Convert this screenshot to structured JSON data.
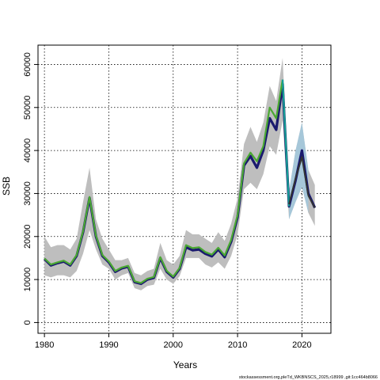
{
  "chart_data": {
    "type": "line",
    "xlabel": "Years",
    "ylabel": "SSB",
    "xlim": [
      1979,
      2024.5
    ],
    "ylim": [
      -2500,
      64500
    ],
    "x_ticks": [
      "1980",
      "1990",
      "2000",
      "2010",
      "2020"
    ],
    "y_ticks": [
      "0",
      "10000",
      "20000",
      "30000",
      "40000",
      "50000",
      "60000"
    ],
    "grid": true,
    "source_note": "stockassessment.org,pleTd_WKBNSCS_2025,r18999 ,git:1cc464b8066",
    "colors": {
      "ci_band": "#bebebe",
      "ci_band_recent": "#9ec9e2",
      "main_series": "#1a1a6e",
      "green_series": "#4aa832",
      "teal_series": "#16a096",
      "dark_series": "#333333"
    },
    "ci": {
      "x": [
        1980,
        1981,
        1982,
        1983,
        1984,
        1985,
        1986,
        1987,
        1988,
        1989,
        1990,
        1991,
        1992,
        1993,
        1994,
        1995,
        1996,
        1997,
        1998,
        1999,
        2000,
        2001,
        2002,
        2003,
        2004,
        2005,
        2006,
        2007,
        2008,
        2009,
        2010,
        2011,
        2012,
        2013,
        2014,
        2015,
        2016,
        2017,
        2018,
        2019,
        2020,
        2021,
        2022
      ],
      "lower": [
        11000,
        10500,
        11000,
        11000,
        10500,
        12000,
        16000,
        21500,
        17000,
        13500,
        12500,
        10000,
        11000,
        11500,
        8000,
        7500,
        8500,
        8800,
        12500,
        10000,
        9000,
        10800,
        15000,
        15000,
        15000,
        13500,
        12800,
        14000,
        12500,
        15500,
        20500,
        31000,
        32500,
        31000,
        34500,
        41000,
        39000,
        47000,
        24000,
        28000,
        31500,
        25500,
        22500
      ],
      "upper": [
        20000,
        17500,
        18000,
        18000,
        17000,
        19500,
        28000,
        36000,
        24000,
        19500,
        17000,
        14500,
        14500,
        15000,
        11500,
        11000,
        12000,
        12500,
        18500,
        14500,
        13500,
        15500,
        21500,
        20500,
        20500,
        19500,
        18500,
        21000,
        19000,
        23000,
        29000,
        41500,
        45500,
        42000,
        46500,
        55000,
        51500,
        61500,
        30500,
        40000,
        46500,
        35500,
        32000
      ]
    },
    "series": [
      {
        "x": [
          1980,
          1981,
          1982,
          1983,
          1984,
          1985,
          1986,
          1987,
          1988,
          1989,
          1990,
          1991,
          1992,
          1993,
          1994,
          1995,
          1996,
          1997,
          1998,
          1999,
          2000,
          2001,
          2002,
          2003,
          2004,
          2005,
          2006,
          2007,
          2008,
          2009,
          2010,
          2011,
          2012,
          2013,
          2014,
          2015,
          2016,
          2017,
          2018,
          2019,
          2020,
          2021,
          2022
        ],
        "values": [
          14800,
          13300,
          13800,
          14200,
          13300,
          15500,
          21000,
          29000,
          20000,
          15500,
          14000,
          11800,
          12600,
          13000,
          9400,
          9000,
          10000,
          10400,
          15000,
          11800,
          10500,
          12500,
          17500,
          16800,
          17000,
          16000,
          15400,
          17000,
          15200,
          18800,
          24500,
          36500,
          38700,
          36000,
          40000,
          47500,
          44800,
          55500,
          27000,
          33000,
          40000,
          30000,
          26700
        ]
      },
      {
        "x": [
          1980,
          1981,
          1982,
          1983,
          1984,
          1985,
          1986,
          1987,
          1988,
          1989,
          1990,
          1991,
          1992,
          1993,
          1994,
          1995,
          1996,
          1997,
          1998,
          1999,
          2000,
          2001,
          2002,
          2003,
          2004,
          2005,
          2006,
          2007,
          2008,
          2009,
          2010,
          2011,
          2012,
          2013,
          2014,
          2015,
          2016,
          2017
        ],
        "values": [
          14900,
          13500,
          14000,
          14400,
          13500,
          15700,
          21200,
          29200,
          20200,
          15700,
          14200,
          12000,
          12800,
          13200,
          9600,
          9200,
          10200,
          10600,
          15200,
          12000,
          10700,
          12700,
          18000,
          17300,
          17500,
          16400,
          15800,
          17400,
          15600,
          19200,
          25000,
          37000,
          39500,
          37500,
          41000,
          50000,
          47500,
          56500
        ]
      },
      {
        "x": [
          2017,
          2018
        ],
        "values": [
          56500,
          27000
        ]
      },
      {
        "x": [
          2018,
          2019,
          2020,
          2021,
          2022
        ],
        "values": [
          27500,
          33500,
          38500,
          29500,
          26700
        ]
      }
    ]
  }
}
